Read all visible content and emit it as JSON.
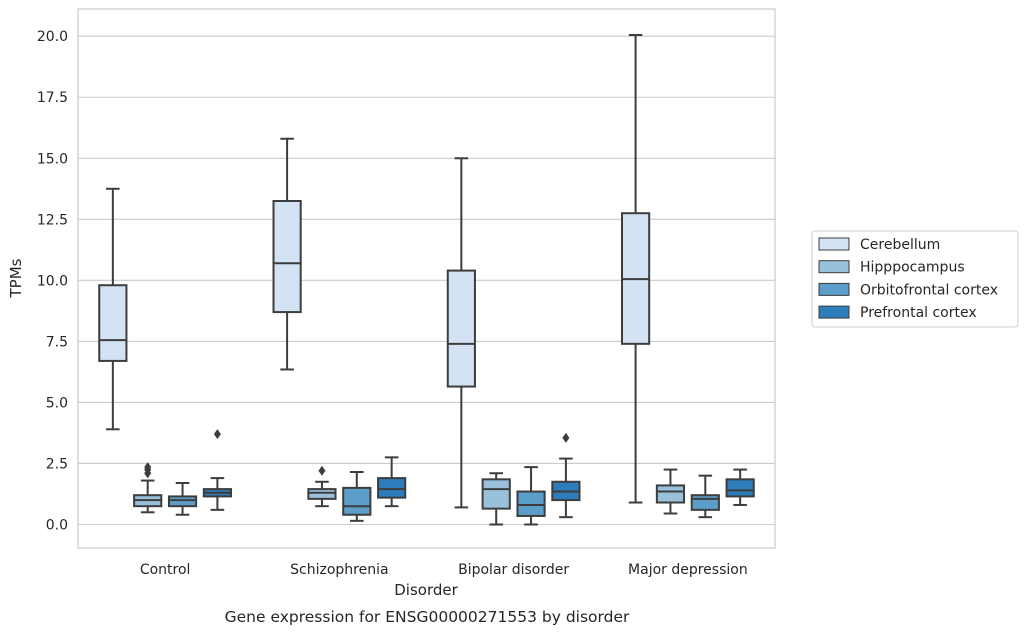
{
  "chart_data": {
    "type": "box",
    "title": "Gene expression for ENSG00000271553 by disorder",
    "xlabel": "Disorder",
    "ylabel": "TPMs",
    "ylim": [
      -0.9,
      21.1
    ],
    "yticks": [
      0.0,
      2.5,
      5.0,
      7.5,
      10.0,
      12.5,
      15.0,
      17.5,
      20.0
    ],
    "ytick_labels": [
      "0.0",
      "2.5",
      "5.0",
      "7.5",
      "10.0",
      "12.5",
      "15.0",
      "17.5",
      "20.0"
    ],
    "grid": true,
    "legend_position": "right",
    "categories": [
      "Control",
      "Schizophrenia",
      "Bipolar disorder",
      "Major depression"
    ],
    "series": [
      {
        "name": "Cerebellum",
        "color": "#d3e3f3",
        "boxes": [
          {
            "whisker_low": 3.9,
            "q1": 6.7,
            "median": 7.55,
            "q3": 9.8,
            "whisker_high": 13.75,
            "outliers": []
          },
          {
            "whisker_low": 6.35,
            "q1": 8.7,
            "median": 10.7,
            "q3": 13.25,
            "whisker_high": 15.8,
            "outliers": []
          },
          {
            "whisker_low": 0.7,
            "q1": 5.65,
            "median": 7.4,
            "q3": 10.4,
            "whisker_high": 15.0,
            "outliers": []
          },
          {
            "whisker_low": 0.9,
            "q1": 7.4,
            "median": 10.05,
            "q3": 12.75,
            "whisker_high": 20.05,
            "outliers": []
          }
        ]
      },
      {
        "name": "Hipppocampus",
        "color": "#9ac1dc",
        "boxes": [
          {
            "whisker_low": 0.5,
            "q1": 0.75,
            "median": 1.0,
            "q3": 1.2,
            "whisker_high": 1.8,
            "outliers": [
              2.1,
              2.25,
              2.35
            ]
          },
          {
            "whisker_low": 0.75,
            "q1": 1.05,
            "median": 1.3,
            "q3": 1.45,
            "whisker_high": 1.75,
            "outliers": [
              2.2
            ]
          },
          {
            "whisker_low": 0.0,
            "q1": 0.65,
            "median": 1.45,
            "q3": 1.85,
            "whisker_high": 2.1,
            "outliers": []
          },
          {
            "whisker_low": 0.45,
            "q1": 0.9,
            "median": 1.35,
            "q3": 1.6,
            "whisker_high": 2.25,
            "outliers": []
          }
        ]
      },
      {
        "name": "Orbitofrontal cortex",
        "color": "#5b9ec9",
        "boxes": [
          {
            "whisker_low": 0.4,
            "q1": 0.75,
            "median": 1.0,
            "q3": 1.15,
            "whisker_high": 1.7,
            "outliers": []
          },
          {
            "whisker_low": 0.15,
            "q1": 0.4,
            "median": 0.75,
            "q3": 1.5,
            "whisker_high": 2.15,
            "outliers": []
          },
          {
            "whisker_low": 0.0,
            "q1": 0.35,
            "median": 0.8,
            "q3": 1.35,
            "whisker_high": 2.35,
            "outliers": []
          },
          {
            "whisker_low": 0.3,
            "q1": 0.6,
            "median": 1.05,
            "q3": 1.2,
            "whisker_high": 2.0,
            "outliers": []
          }
        ]
      },
      {
        "name": "Prefrontal cortex",
        "color": "#2d7dbb",
        "boxes": [
          {
            "whisker_low": 0.6,
            "q1": 1.15,
            "median": 1.3,
            "q3": 1.45,
            "whisker_high": 1.9,
            "outliers": [
              3.7
            ]
          },
          {
            "whisker_low": 0.75,
            "q1": 1.1,
            "median": 1.45,
            "q3": 1.9,
            "whisker_high": 2.75,
            "outliers": []
          },
          {
            "whisker_low": 0.3,
            "q1": 1.0,
            "median": 1.35,
            "q3": 1.75,
            "whisker_high": 2.7,
            "outliers": [
              3.55
            ]
          },
          {
            "whisker_low": 0.8,
            "q1": 1.15,
            "median": 1.4,
            "q3": 1.85,
            "whisker_high": 2.25,
            "outliers": []
          }
        ]
      }
    ]
  }
}
